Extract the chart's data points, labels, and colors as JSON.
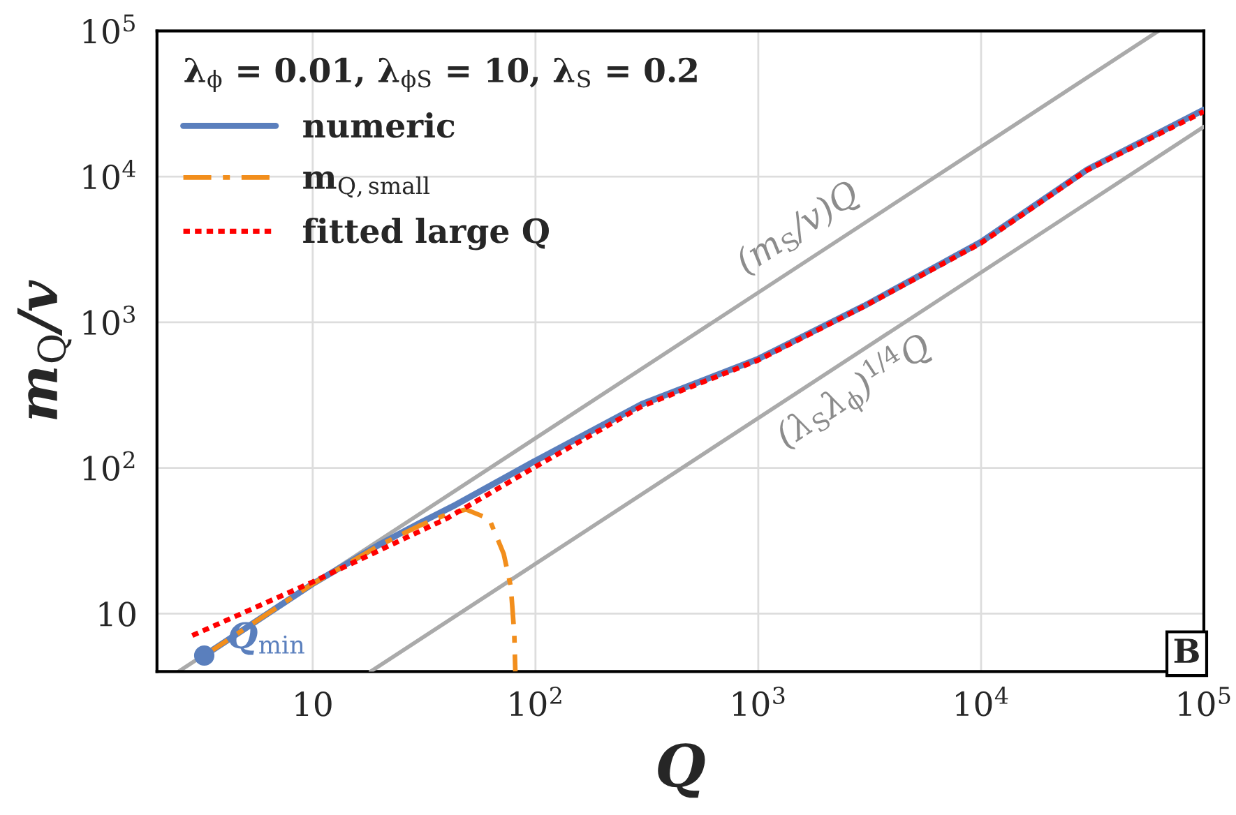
{
  "chart_data": {
    "type": "line",
    "xlabel": "Q",
    "ylabel": "m$_{Q}$/v",
    "legend_title": "λ$_{ϕ}$ = 0.01, λ$_{ϕS}$ = 10, λ$_{S}$ = 0.2",
    "log": "xy",
    "grid": true,
    "legend": "top left",
    "xlim": [
      2,
      100000
    ],
    "ylim": [
      4,
      100000
    ],
    "xticks": [
      10,
      {
        "value": 100,
        "label": "10$^{2}$"
      },
      {
        "value": 1000,
        "label": "10$^{3}$"
      },
      {
        "value": 10000,
        "label": "10$^{4}$"
      },
      {
        "value": 100000,
        "label": "10$^{5}$"
      }
    ],
    "yticks": [
      10,
      {
        "value": 100,
        "label": "10$^{2}$"
      },
      {
        "value": 1000,
        "label": "10$^{3}$"
      },
      {
        "value": 10000,
        "label": "10$^{4}$"
      },
      {
        "value": 100000,
        "label": "10$^{5}$"
      }
    ],
    "series": [
      {
        "name": "(m$_{S}$/v)Q",
        "color": "#aaaaaa",
        "line_style": "solid",
        "x": [
          2.5,
          62500
        ],
        "values": [
          4,
          100000
        ]
      },
      {
        "name": "(λ$_{S}$λ$_{ϕ}$)$^{1/4}$Q",
        "color": "#aaaaaa",
        "line_style": "solid",
        "x": [
          18.2,
          100000
        ],
        "values": [
          4,
          22000
        ]
      },
      {
        "name": "numeric",
        "color": "#5a7fbd",
        "line_style": "solid",
        "x": [
          3.26,
          10,
          20,
          30,
          44,
          100,
          300,
          1000,
          3000,
          10000,
          30000,
          100000
        ],
        "values": [
          5.15,
          16,
          29.9,
          41.6,
          56,
          112,
          274,
          561,
          1300,
          3560,
          11200,
          28800
        ]
      },
      {
        "name": "m$_{Q,small}$",
        "color": "#f28e1c",
        "line_style": "dashed",
        "x": [
          3.26,
          10,
          20,
          30,
          40,
          48.8,
          62,
          72,
          77.5,
          80.3,
          81.2
        ],
        "values": [
          5.15,
          16,
          29.5,
          40,
          48,
          51.8,
          44.7,
          25.7,
          15.3,
          7.3,
          4
        ]
      },
      {
        "name": "fitted large Q",
        "color": "#ff0000",
        "line_style": "dotted",
        "x": [
          2.88,
          10,
          40,
          100,
          300,
          1000,
          3000,
          10000,
          30000,
          100000
        ],
        "values": [
          7.07,
          16.5,
          45,
          102,
          265,
          550,
          1290,
          3500,
          11100,
          28000
        ]
      },
      {
        "type": "scatter",
        "marker": "circle",
        "color": "#5a7fbd",
        "x": [
          3.26
        ],
        "values": [
          5.15
        ]
      }
    ],
    "annotations": [
      {
        "text": "Q$_{min}$",
        "x": 3.26,
        "y": 5.15
      },
      "B"
    ]
  }
}
